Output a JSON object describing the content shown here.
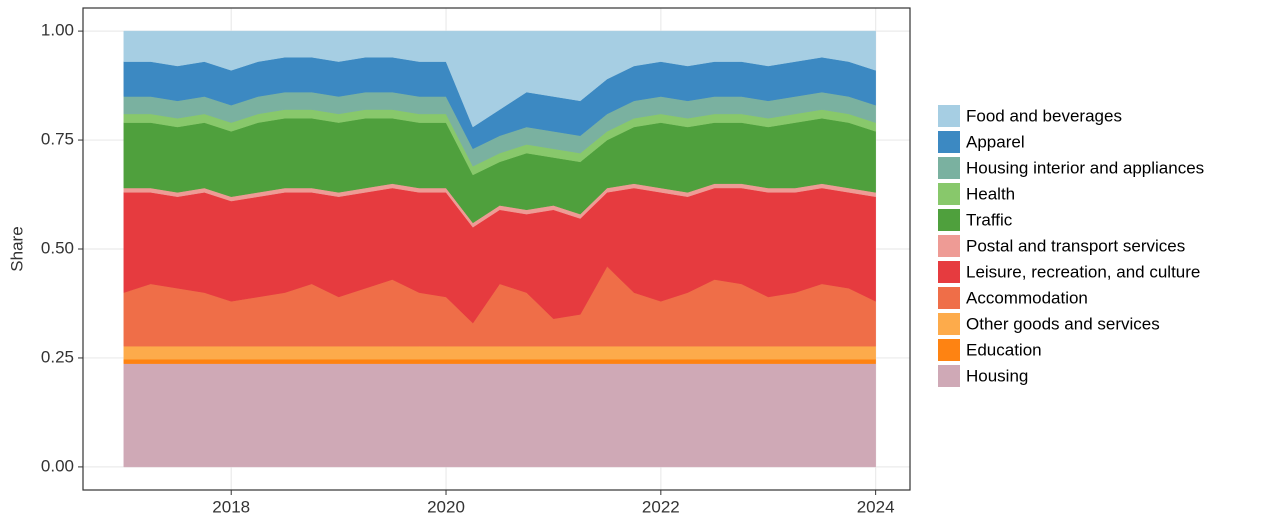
{
  "chart_data": {
    "type": "stacked-area",
    "y_label": "Share",
    "x": [
      2017,
      2017.25,
      2017.5,
      2017.75,
      2018,
      2018.25,
      2018.5,
      2018.75,
      2019,
      2019.25,
      2019.5,
      2019.75,
      2020,
      2020.25,
      2020.5,
      2020.75,
      2021,
      2021.25,
      2021.5,
      2021.75,
      2022,
      2022.25,
      2022.5,
      2022.75,
      2023,
      2023.25,
      2023.5,
      2023.75,
      2024
    ],
    "xlim": [
      2016.62,
      2024.32
    ],
    "xticks": [
      2018,
      2020,
      2022,
      2024
    ],
    "ylim": [
      -0.053,
      1.053
    ],
    "yticks": [
      {
        "value": 0,
        "label": "0.00"
      },
      {
        "value": 0.25,
        "label": "0.25"
      },
      {
        "value": 0.5,
        "label": "0.50"
      },
      {
        "value": 0.75,
        "label": "0.75"
      },
      {
        "value": 1,
        "label": "1.00"
      }
    ],
    "grid": true,
    "series": [
      {
        "name": "Food and beverages",
        "color": "#a6cee3",
        "values": [
          0.07,
          0.07,
          0.08,
          0.07,
          0.09,
          0.07,
          0.06,
          0.06,
          0.07,
          0.06,
          0.06,
          0.07,
          0.07,
          0.22,
          0.18,
          0.14,
          0.15,
          0.16,
          0.11,
          0.08,
          0.07,
          0.08,
          0.07,
          0.07,
          0.08,
          0.07,
          0.06,
          0.07,
          0.09
        ]
      },
      {
        "name": "Apparel",
        "color": "#3c89c2",
        "values": [
          0.08,
          0.08,
          0.08,
          0.08,
          0.08,
          0.08,
          0.08,
          0.08,
          0.08,
          0.08,
          0.08,
          0.08,
          0.08,
          0.05,
          0.06,
          0.08,
          0.08,
          0.08,
          0.08,
          0.08,
          0.08,
          0.08,
          0.08,
          0.08,
          0.08,
          0.08,
          0.08,
          0.08,
          0.08
        ]
      },
      {
        "name": "Housing interior and appliances",
        "color": "#7ab1a0",
        "values": [
          0.04,
          0.04,
          0.04,
          0.04,
          0.04,
          0.04,
          0.04,
          0.04,
          0.04,
          0.04,
          0.04,
          0.04,
          0.04,
          0.04,
          0.04,
          0.04,
          0.04,
          0.04,
          0.04,
          0.04,
          0.04,
          0.04,
          0.04,
          0.04,
          0.04,
          0.04,
          0.04,
          0.04,
          0.04
        ]
      },
      {
        "name": "Health",
        "color": "#88c86b",
        "values": [
          0.02,
          0.02,
          0.02,
          0.02,
          0.02,
          0.02,
          0.02,
          0.02,
          0.02,
          0.02,
          0.02,
          0.02,
          0.02,
          0.02,
          0.02,
          0.02,
          0.02,
          0.02,
          0.02,
          0.02,
          0.02,
          0.02,
          0.02,
          0.02,
          0.02,
          0.02,
          0.02,
          0.02,
          0.02
        ]
      },
      {
        "name": "Traffic",
        "color": "#4fa03d",
        "values": [
          0.15,
          0.15,
          0.15,
          0.15,
          0.15,
          0.16,
          0.16,
          0.16,
          0.16,
          0.16,
          0.15,
          0.15,
          0.15,
          0.11,
          0.1,
          0.13,
          0.11,
          0.12,
          0.11,
          0.13,
          0.15,
          0.15,
          0.14,
          0.14,
          0.14,
          0.15,
          0.15,
          0.15,
          0.14
        ]
      },
      {
        "name": "Postal and transport services",
        "color": "#ee9b95",
        "values": [
          0.01,
          0.01,
          0.01,
          0.01,
          0.01,
          0.01,
          0.01,
          0.01,
          0.01,
          0.01,
          0.01,
          0.01,
          0.01,
          0.01,
          0.01,
          0.01,
          0.01,
          0.01,
          0.01,
          0.01,
          0.01,
          0.01,
          0.01,
          0.01,
          0.01,
          0.01,
          0.01,
          0.01,
          0.01
        ]
      },
      {
        "name": "Leisure, recreation, and culture",
        "color": "#e63b3f",
        "values": [
          0.23,
          0.21,
          0.21,
          0.23,
          0.23,
          0.23,
          0.23,
          0.21,
          0.23,
          0.22,
          0.21,
          0.23,
          0.24,
          0.22,
          0.17,
          0.18,
          0.25,
          0.22,
          0.17,
          0.24,
          0.25,
          0.22,
          0.21,
          0.22,
          0.24,
          0.23,
          0.22,
          0.22,
          0.24
        ]
      },
      {
        "name": "Accommodation",
        "color": "#ef6e48",
        "values": [
          0.123,
          0.143,
          0.133,
          0.123,
          0.103,
          0.113,
          0.123,
          0.143,
          0.113,
          0.133,
          0.153,
          0.123,
          0.113,
          0.053,
          0.143,
          0.123,
          0.063,
          0.073,
          0.183,
          0.123,
          0.103,
          0.123,
          0.153,
          0.143,
          0.113,
          0.123,
          0.143,
          0.133,
          0.103
        ]
      },
      {
        "name": "Other goods and services",
        "color": "#fdab4b",
        "values": [
          0.03,
          0.03,
          0.03,
          0.03,
          0.03,
          0.03,
          0.03,
          0.03,
          0.03,
          0.03,
          0.03,
          0.03,
          0.03,
          0.03,
          0.03,
          0.03,
          0.03,
          0.03,
          0.03,
          0.03,
          0.03,
          0.03,
          0.03,
          0.03,
          0.03,
          0.03,
          0.03,
          0.03,
          0.03
        ]
      },
      {
        "name": "Education",
        "color": "#fe8312",
        "values": [
          0.01,
          0.01,
          0.01,
          0.01,
          0.01,
          0.01,
          0.01,
          0.01,
          0.01,
          0.01,
          0.01,
          0.01,
          0.01,
          0.01,
          0.01,
          0.01,
          0.01,
          0.01,
          0.01,
          0.01,
          0.01,
          0.01,
          0.01,
          0.01,
          0.01,
          0.01,
          0.01,
          0.01,
          0.01
        ]
      },
      {
        "name": "Housing",
        "color": "#cfa9b6",
        "values": [
          0.237,
          0.237,
          0.237,
          0.237,
          0.237,
          0.237,
          0.237,
          0.237,
          0.237,
          0.237,
          0.237,
          0.237,
          0.237,
          0.237,
          0.237,
          0.237,
          0.237,
          0.237,
          0.237,
          0.237,
          0.237,
          0.237,
          0.237,
          0.237,
          0.237,
          0.237,
          0.237,
          0.237,
          0.237
        ]
      }
    ]
  }
}
